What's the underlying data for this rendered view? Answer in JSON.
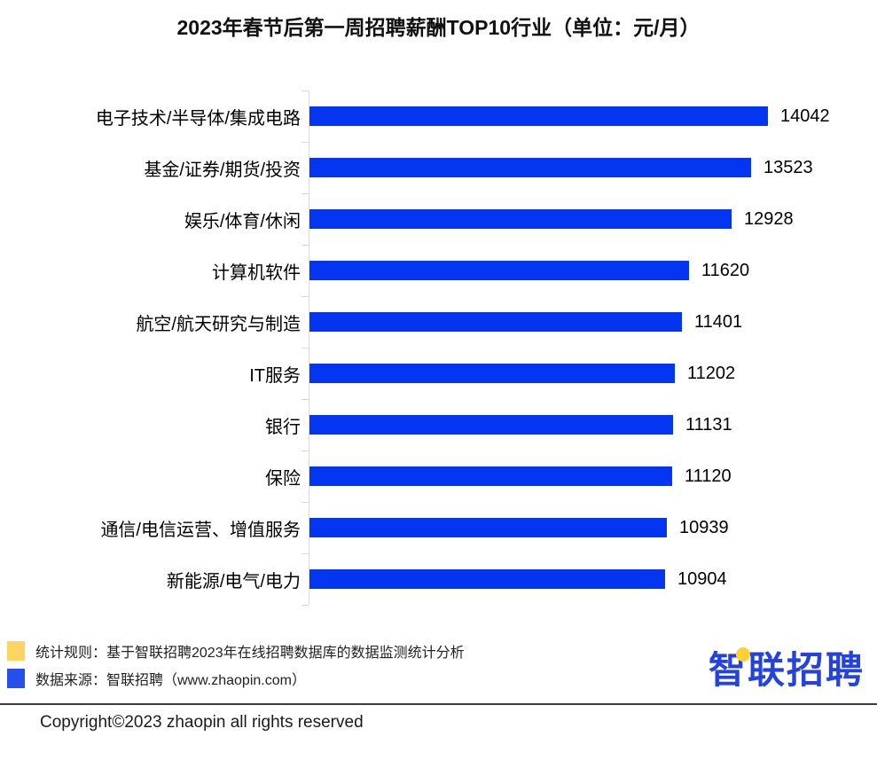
{
  "title": "2023年春节后第一周招聘薪酬TOP10行业（单位：元/月）",
  "chart_data": {
    "type": "bar",
    "orientation": "horizontal",
    "categories": [
      "电子技术/半导体/集成电路",
      "基金/证券/期货/投资",
      "娱乐/体育/休闲",
      "计算机软件",
      "航空/航天研究与制造",
      "IT服务",
      "银行",
      "保险",
      "通信/电信运营、增值服务",
      "新能源/电气/电力"
    ],
    "values": [
      14042,
      13523,
      12928,
      11620,
      11401,
      11202,
      11131,
      11120,
      10939,
      10904
    ],
    "value_labels_shown": true,
    "grid": false,
    "bar_color": "#0435f0",
    "axis_color": "#d9d9d9",
    "xlabel": "",
    "ylabel": ""
  },
  "legend": {
    "items": [
      {
        "swatch_color": "#fcd462",
        "label": "统计规则：基于智联招聘2023年在线招聘数据库的数据监测统计分析"
      },
      {
        "swatch_color": "#2750eb",
        "label": "数据来源：智联招聘（www.zhaopin.com）"
      }
    ]
  },
  "logo": {
    "first_char": "智",
    "rest": "联招聘",
    "color": "#2342e0",
    "accent_color": "#ffcf36"
  },
  "footer": {
    "copyright": "Copyright©2023 zhaopin all rights reserved"
  }
}
